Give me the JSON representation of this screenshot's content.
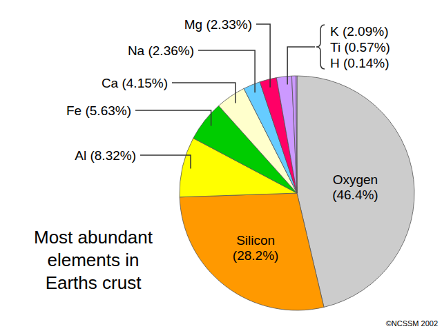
{
  "chart_data": {
    "type": "pie",
    "title": "Most abundant elements in Earths crust",
    "categories": [
      "Oxygen",
      "Silicon",
      "Al",
      "Fe",
      "Ca",
      "Na",
      "Mg",
      "K",
      "Ti",
      "H"
    ],
    "values": [
      46.4,
      28.2,
      8.32,
      5.63,
      4.15,
      2.36,
      2.33,
      2.09,
      0.57,
      0.14
    ],
    "value_labels": [
      "(46.4%)",
      "(28.2%)",
      "(8.32%)",
      "(5.63%)",
      "(4.15%)",
      "(2.36%)",
      "(2.33%)",
      "(2.09%)",
      "(0.57%)",
      "(0.14%)"
    ],
    "colors": [
      "#cccccc",
      "#ff9900",
      "#ffff00",
      "#00cc00",
      "#ffffcc",
      "#66ccff",
      "#ff0066",
      "#cc99ff",
      "#cc99ff",
      "#cc99ff"
    ],
    "data_labels": true,
    "annotations": [
      "©NCSSM 2002"
    ]
  }
}
